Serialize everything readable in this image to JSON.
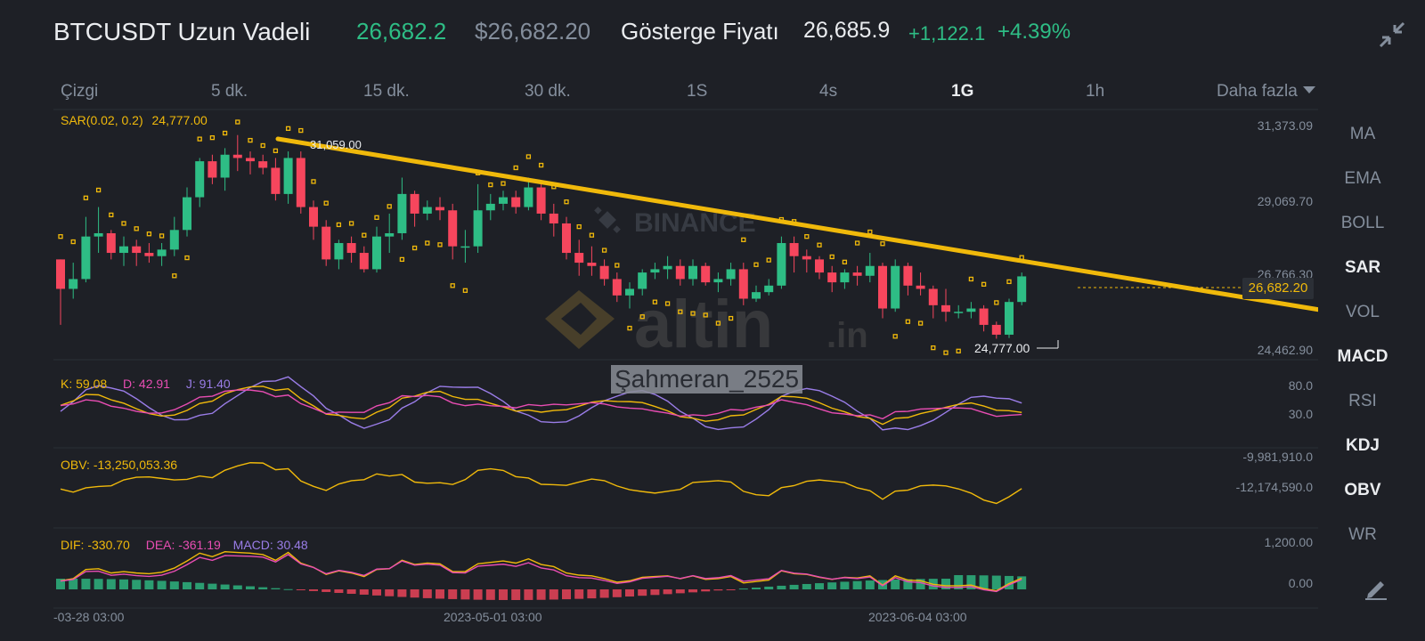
{
  "header": {
    "title": "BTCUSDT Uzun Vadeli",
    "last_price": "26,682.2",
    "last_price_usd": "$26,682.20",
    "mark_label": "Gösterge Fiyatı",
    "mark_price": "26,685.9",
    "change_abs": "+1,122.1",
    "change_pct": "+4.39%"
  },
  "intervals": [
    "Çizgi",
    "5 dk.",
    "15 dk.",
    "30 dk.",
    "1S",
    "4s",
    "1G",
    "1h",
    "Daha fazla"
  ],
  "active_interval": "1G",
  "right_menu": [
    "MA",
    "EMA",
    "BOLL",
    "SAR",
    "VOL",
    "MACD",
    "RSI",
    "KDJ",
    "OBV",
    "WR"
  ],
  "right_menu_active": [
    "SAR",
    "MACD",
    "KDJ",
    "OBV"
  ],
  "main_indicator": {
    "label": "SAR(0.02, 0.2)",
    "value": "24,777.00",
    "high_marker": "31,059.00",
    "low_marker": "24,777.00"
  },
  "price_axis": [
    "31,373.09",
    "29,069.70",
    "26,766.30",
    "24,462.90"
  ],
  "last_price_label": "26,682.20",
  "kdj": {
    "k": "K: 59.08",
    "d": "D: 42.91",
    "j": "J: 91.40",
    "axis": [
      "80.0",
      "30.0"
    ]
  },
  "obv": {
    "label": "OBV: -13,250,053.36",
    "axis": [
      "-9,981,910.0",
      "-12,174,590.0"
    ]
  },
  "macd": {
    "dif": "DIF: -330.70",
    "dea": "DEA: -361.19",
    "macd": "MACD: 30.48",
    "axis": [
      "1,200.00",
      "0.00"
    ]
  },
  "time_axis": [
    "-03-28 03:00",
    "2023-05-01 03:00",
    "2023-06-04 03:00"
  ],
  "watermarks": {
    "brand": "BINANCE",
    "site": "altin",
    "site_suffix": ".in",
    "user": "Şahmeran_2525"
  },
  "colors": {
    "up": "#2ebd85",
    "down": "#f6465d",
    "sar": "#f0b90b",
    "trendline": "#f0b90b",
    "bg": "#1e2026"
  },
  "icons": {
    "collapse": "collapse-arrows-icon",
    "edit": "drawing-pencil-icon",
    "dropdown": "caret-down-icon"
  },
  "chart_data": {
    "type": "candlestick",
    "interval": "1G",
    "candles_ohlc_approx": [
      [
        27200,
        26300,
        27200,
        25200
      ],
      [
        26300,
        26600,
        27100,
        26000
      ],
      [
        26600,
        27900,
        28500,
        26500
      ],
      [
        27900,
        28000,
        28800,
        27400
      ],
      [
        28000,
        27400,
        28100,
        27200
      ],
      [
        27400,
        27600,
        27900,
        27000
      ],
      [
        27600,
        27400,
        27800,
        27000
      ],
      [
        27400,
        27300,
        27700,
        27100
      ],
      [
        27300,
        27500,
        27700,
        27000
      ],
      [
        27500,
        28100,
        28500,
        27300
      ],
      [
        28100,
        29100,
        29400,
        27900
      ],
      [
        29100,
        30200,
        30300,
        28800
      ],
      [
        30200,
        29700,
        30400,
        29500
      ],
      [
        29700,
        30400,
        30600,
        29300
      ],
      [
        30400,
        30300,
        31000,
        29900
      ],
      [
        30300,
        30200,
        30500,
        29800
      ],
      [
        30200,
        30000,
        30400,
        29800
      ],
      [
        30000,
        29200,
        30300,
        29000
      ],
      [
        29200,
        30300,
        30500,
        28900
      ],
      [
        30300,
        28800,
        30500,
        28600
      ],
      [
        28800,
        28200,
        29000,
        27800
      ],
      [
        28200,
        27200,
        28400,
        27000
      ],
      [
        27200,
        27700,
        27800,
        26900
      ],
      [
        27700,
        27400,
        27900,
        27100
      ],
      [
        27400,
        26900,
        27600,
        26800
      ],
      [
        26900,
        27900,
        28200,
        26800
      ],
      [
        27900,
        28000,
        28600,
        27400
      ],
      [
        28000,
        29200,
        29700,
        27800
      ],
      [
        29200,
        28600,
        29300,
        28200
      ],
      [
        28600,
        28800,
        29000,
        28400
      ],
      [
        28800,
        28700,
        29100,
        28400
      ],
      [
        28700,
        27600,
        28900,
        27200
      ],
      [
        27600,
        27600,
        28100,
        27100
      ],
      [
        27600,
        28700,
        29500,
        27400
      ],
      [
        28700,
        28900,
        29200,
        28400
      ],
      [
        28900,
        29100,
        29300,
        28700
      ],
      [
        29100,
        28800,
        29300,
        28600
      ],
      [
        28800,
        29400,
        29700,
        28700
      ],
      [
        29400,
        28600,
        29500,
        28400
      ],
      [
        28600,
        28300,
        28900,
        27900
      ],
      [
        28300,
        27400,
        28500,
        27200
      ],
      [
        27400,
        27100,
        27800,
        26700
      ],
      [
        27100,
        27000,
        27600,
        26700
      ],
      [
        27000,
        26600,
        27200,
        26400
      ],
      [
        26600,
        26100,
        26800,
        25900
      ],
      [
        26100,
        26300,
        26500,
        25700
      ],
      [
        26300,
        26800,
        26900,
        26100
      ],
      [
        26800,
        26900,
        27100,
        26600
      ],
      [
        26900,
        27000,
        27300,
        26600
      ],
      [
        27000,
        26600,
        27200,
        26400
      ],
      [
        26600,
        27000,
        27200,
        26400
      ],
      [
        27000,
        26500,
        27100,
        26400
      ],
      [
        26500,
        26600,
        26800,
        26200
      ],
      [
        26600,
        26900,
        27100,
        26400
      ],
      [
        26900,
        26000,
        27100,
        25800
      ],
      [
        26000,
        26200,
        26400,
        25900
      ],
      [
        26200,
        26400,
        26600,
        26100
      ],
      [
        26400,
        27700,
        27900,
        26300
      ],
      [
        27700,
        27300,
        27900,
        26800
      ],
      [
        27300,
        27200,
        27500,
        26800
      ],
      [
        27200,
        26800,
        27300,
        26600
      ],
      [
        26800,
        26500,
        27000,
        26200
      ],
      [
        26500,
        26800,
        26900,
        26300
      ],
      [
        26800,
        26700,
        27000,
        26400
      ],
      [
        26700,
        27000,
        27400,
        26500
      ],
      [
        27000,
        25700,
        27100,
        25400
      ],
      [
        25700,
        27000,
        27200,
        25600
      ],
      [
        27000,
        26400,
        27100,
        26100
      ],
      [
        26400,
        26300,
        26800,
        26100
      ],
      [
        26300,
        25800,
        26400,
        25400
      ],
      [
        25800,
        25600,
        26300,
        25300
      ],
      [
        25600,
        25600,
        25800,
        25400
      ],
      [
        25600,
        25700,
        25900,
        25400
      ],
      [
        25700,
        25200,
        25800,
        25000
      ],
      [
        25200,
        24900,
        25300,
        24777
      ],
      [
        24900,
        25900,
        26000,
        24800
      ],
      [
        25900,
        26682,
        26800,
        25800
      ]
    ],
    "sar_level": 24777.0,
    "trendline": {
      "from": [
        1,
        31059
      ],
      "to": [
        95,
        25800
      ]
    },
    "kdj": {
      "k": 59.08,
      "d": 42.91,
      "j": 91.4
    },
    "obv": -13250053.36,
    "macd": {
      "dif": -330.7,
      "dea": -361.19,
      "macd": 30.48
    }
  }
}
